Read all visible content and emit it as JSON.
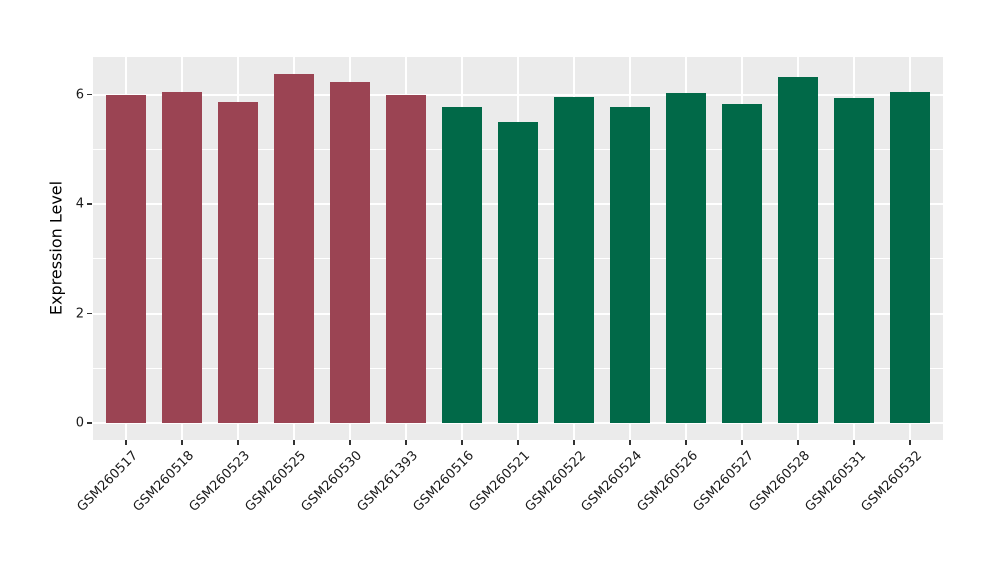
{
  "figure": {
    "background_color": "#ffffff",
    "panel_background_color": "#EBEBEB",
    "gridline_color": "#ffffff",
    "tick_color": "#333333",
    "text_color": "#1a1a1a"
  },
  "chart_data": {
    "type": "bar",
    "title": "",
    "xlabel": "",
    "ylabel": "Expression Level",
    "ylim": [
      0,
      6.68
    ],
    "yticks": [
      0,
      2,
      4,
      6
    ],
    "yticks_minor": [
      1,
      3,
      5
    ],
    "grid": true,
    "legend": false,
    "categories": [
      "GSM260517",
      "GSM260518",
      "GSM260523",
      "GSM260525",
      "GSM260530",
      "GSM261393",
      "GSM260516",
      "GSM260521",
      "GSM260522",
      "GSM260524",
      "GSM260526",
      "GSM260527",
      "GSM260528",
      "GSM260531",
      "GSM260532"
    ],
    "values": [
      6.0,
      6.05,
      5.86,
      6.37,
      6.22,
      6.0,
      5.77,
      5.49,
      5.95,
      5.78,
      6.02,
      5.83,
      6.32,
      5.93,
      6.05
    ],
    "groups": [
      "group1",
      "group1",
      "group1",
      "group1",
      "group1",
      "group1",
      "group2",
      "group2",
      "group2",
      "group2",
      "group2",
      "group2",
      "group2",
      "group2",
      "group2"
    ],
    "group_colors": {
      "group1": "#9B4453",
      "group2": "#016948"
    }
  }
}
